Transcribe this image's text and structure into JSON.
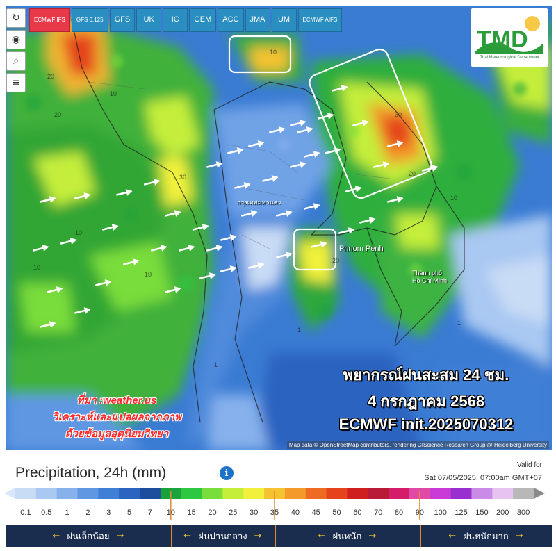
{
  "map": {
    "model_tabs": [
      {
        "label": "ECMWF IFS",
        "active": true,
        "small": true
      },
      {
        "label": "GFS 0.125",
        "active": false,
        "small": true
      },
      {
        "label": "GFS",
        "active": false,
        "small": false
      },
      {
        "label": "UK",
        "active": false,
        "small": false
      },
      {
        "label": "IC",
        "active": false,
        "small": false
      },
      {
        "label": "GEM",
        "active": false,
        "small": false
      },
      {
        "label": "ACC",
        "active": false,
        "small": false
      },
      {
        "label": "JMA",
        "active": false,
        "small": false
      },
      {
        "label": "UM",
        "active": false,
        "small": false
      },
      {
        "label": "ECMWF AIFS",
        "active": false,
        "small": true
      }
    ],
    "tools": [
      {
        "name": "refresh-icon",
        "glyph": "↻"
      },
      {
        "name": "location-pin-icon",
        "glyph": "◉"
      },
      {
        "name": "zoom-icon",
        "glyph": "⌕"
      },
      {
        "name": "layers-icon",
        "glyph": "≡"
      }
    ],
    "logo": {
      "text": "TMD",
      "subtitle": "Thai Meteorological Department"
    },
    "cities": {
      "bangkok": "กรุงเทพมหานคร",
      "phnom_penh": "Phnom Penh",
      "hcm_1": "Thành phố",
      "hcm_2": "Hồ Chí Minh"
    },
    "forecast_title": "พยากรณ์ฝนสะสม 24 ชม.",
    "forecast_date": "4 กรกฎาคม 2568",
    "forecast_init": "ECMWF init.2025070312",
    "source_line1": "ที่มา :weather.us",
    "source_line2": "วิเคราะห์และแปลผลจากภาพ",
    "source_line3": "ด้วยข้อมูลอุตุนิยมวิทยา",
    "attribution": "Map data © OpenStreetMap contributors, rendering GIScience Research Group @ Heidelberg University"
  },
  "legend": {
    "title": "Precipitation, 24h (mm)",
    "valid_label": "Valid for",
    "valid_time": "Sat 07/05/2025, 07:00am GMT+07",
    "scale_values": [
      "0.1",
      "0.5",
      "1",
      "2",
      "3",
      "5",
      "7",
      "10",
      "15",
      "20",
      "25",
      "30",
      "35",
      "40",
      "45",
      "50",
      "60",
      "70",
      "80",
      "90",
      "100",
      "125",
      "150",
      "200",
      "300"
    ],
    "colors": [
      "#c9dcf5",
      "#a9c8f2",
      "#86b1ec",
      "#5f97e3",
      "#3f7fd6",
      "#2a64c0",
      "#1b4f9e",
      "#1aa33c",
      "#2ec742",
      "#79dd3b",
      "#c4ee3a",
      "#f1f13b",
      "#f5c232",
      "#f39a2a",
      "#ef6b23",
      "#e4431e",
      "#cf1f1f",
      "#b81a38",
      "#d41c6b",
      "#e04aa5",
      "#c93ad6",
      "#9a2fd0",
      "#c98be6",
      "#e7c3f2",
      "#b8b8b8"
    ],
    "categories": [
      {
        "label": "ฝนเล็กน้อย"
      },
      {
        "label": "ฝนปานกลาง"
      },
      {
        "label": "ฝนหนัก"
      },
      {
        "label": "ฝนหนักมาก"
      }
    ]
  }
}
